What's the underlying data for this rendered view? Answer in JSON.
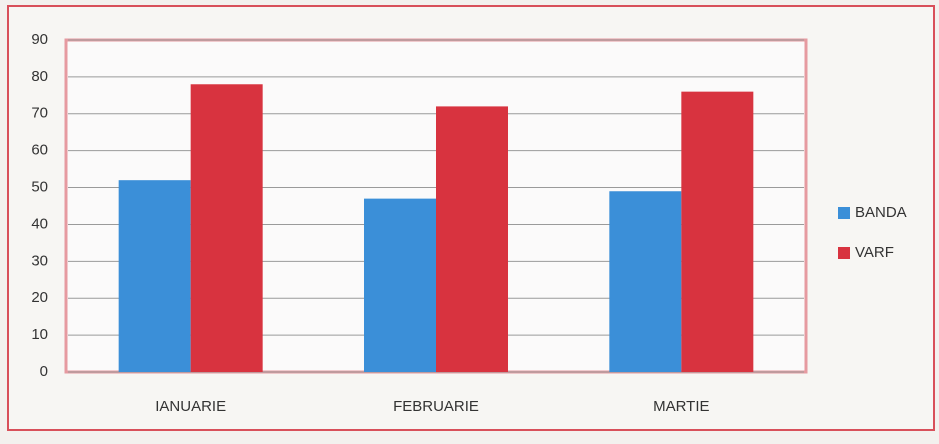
{
  "chart_data": {
    "type": "bar",
    "categories": [
      "IANUARIE",
      "FEBRUARIE",
      "MARTIE"
    ],
    "series": [
      {
        "name": "BANDA",
        "color": "#3b8fd8",
        "values": [
          52,
          47,
          49
        ]
      },
      {
        "name": "VARF",
        "color": "#d8333f",
        "values": [
          78,
          72,
          76
        ]
      }
    ],
    "ylim": [
      0,
      90
    ],
    "yticks": [
      0,
      10,
      20,
      30,
      40,
      50,
      60,
      70,
      80,
      90
    ],
    "grid": true,
    "legend": "right"
  }
}
